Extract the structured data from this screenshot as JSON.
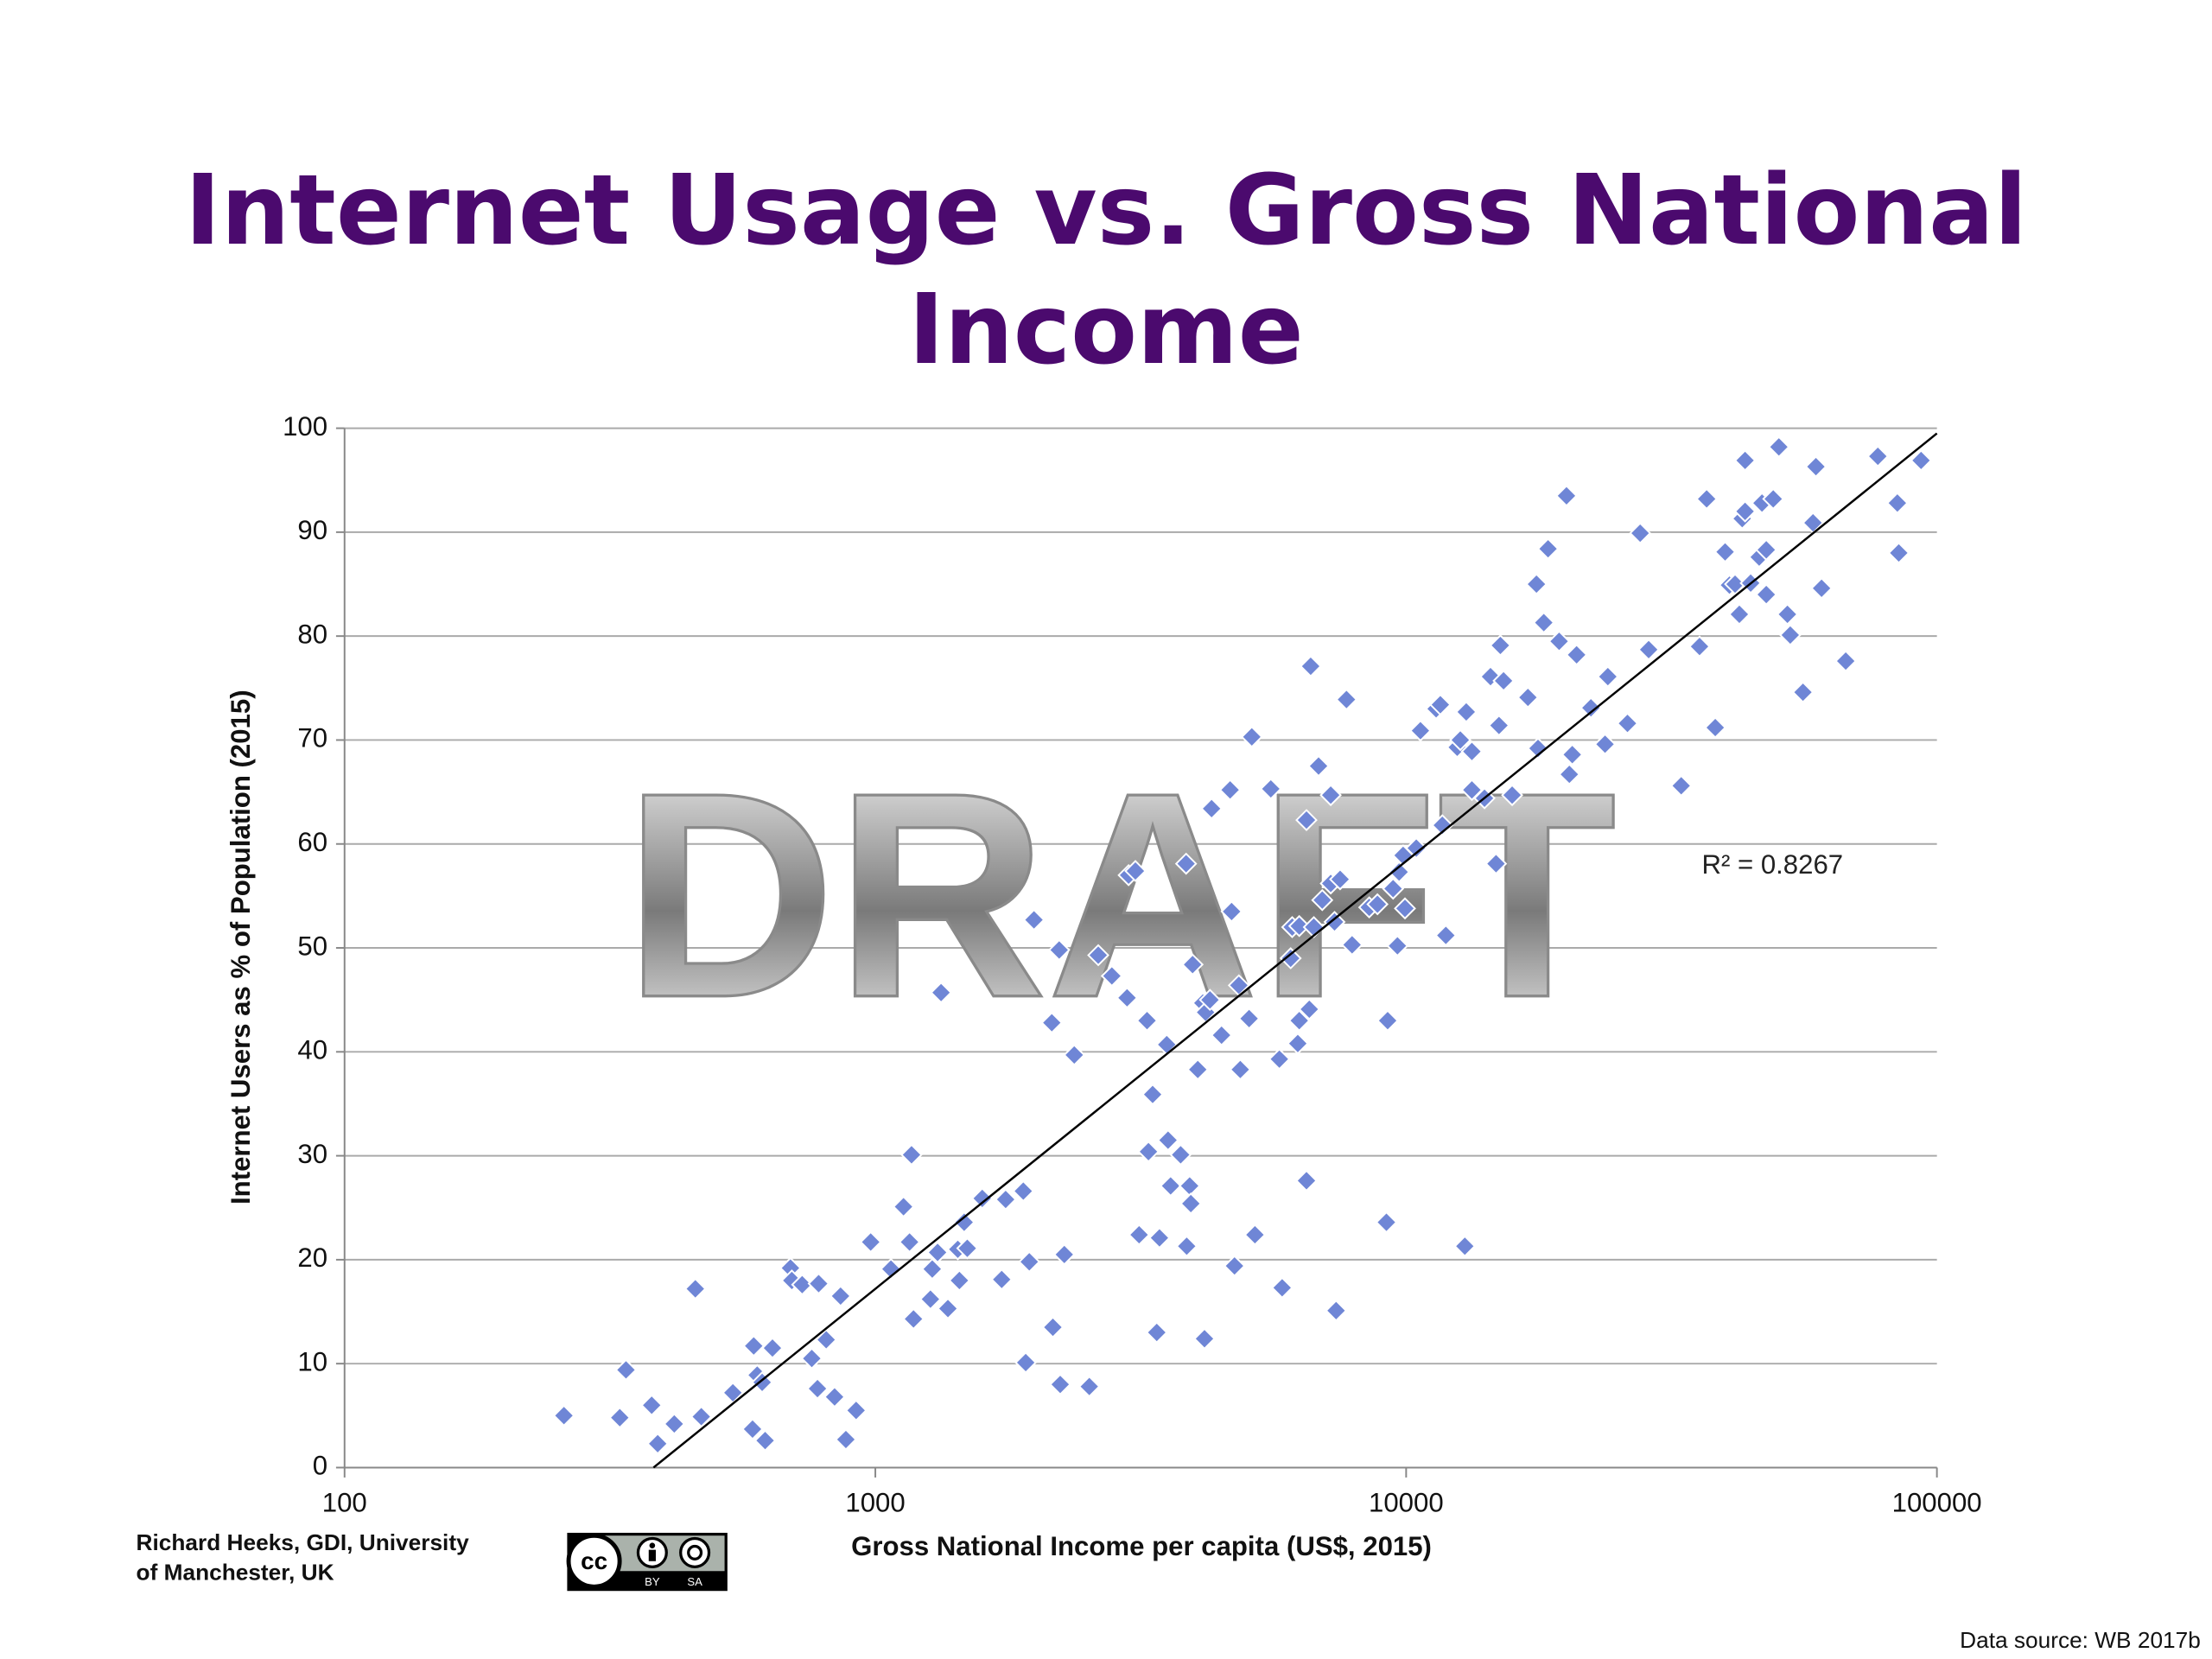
{
  "chart_data": {
    "type": "scatter",
    "title": "Internet Usage vs. Gross National Income",
    "x_label": "Gross National Income per capita (US$, 2015)",
    "y_label": "Internet Users as % of Population (2015)",
    "x_log": true,
    "grid": true,
    "color": "#6f86d6",
    "xlim": [
      100,
      100000
    ],
    "xticks": [
      100,
      1000,
      10000,
      100000
    ],
    "ylim": [
      0,
      100
    ],
    "yticks": [
      0,
      10,
      20,
      30,
      40,
      50,
      60,
      70,
      80,
      90,
      100
    ],
    "x": [
      259,
      330,
      339,
      379,
      389,
      418,
      458,
      470,
      539,
      590,
      587,
      599,
      620,
      640,
      612,
      692,
      696,
      728,
      759,
      782,
      778,
      808,
      838,
      860,
      880,
      920,
      980,
      1070,
      1130,
      1160,
      1170,
      1180,
      1270,
      1280,
      1310,
      1330,
      1370,
      1430,
      1440,
      1490,
      1470,
      1590,
      1730,
      1760,
      1900,
      1920,
      1950,
      1990,
      2150,
      2160,
      2220,
      2230,
      2270,
      2370,
      2530,
      2630,
      2790,
      2980,
      3000,
      3090,
      3140,
      3250,
      3270,
      3330,
      3390,
      3430,
      3540,
      3560,
      3600,
      3760,
      3850,
      3860,
      3910,
      3930,
      3960,
      4050,
      4140,
      4170,
      4190,
      4270,
      4300,
      4490,
      4660,
      4690,
      4750,
      4870,
      4840,
      5060,
      5120,
      5190,
      5560,
      5770,
      5840,
      6060,
      6100,
      6250,
      6290,
      6290,
      6490,
      6490,
      6570,
      6610,
      6700,
      6840,
      6950,
      7210,
      7210,
      7330,
      7380,
      7510,
      7720,
      7910,
      8520,
      8830,
      9230,
      9180,
      9450,
      9700,
      9630,
      9870,
      9950,
      10450,
      10640,
      11390,
      11600,
      11880,
      11700,
      12480,
      12650,
      12980,
      12900,
      13300,
      13300,
      14050,
      14420,
      14770,
      14960,
      15050,
      15260,
      15840,
      16960,
      17600,
      17720,
      18170,
      18510,
      19420,
      20050,
      20300,
      20560,
      20950,
      22290,
      23700,
      23990,
      26120,
      27600,
      28640,
      32980,
      35710,
      36830,
      38230,
      39900,
      40660,
      41660,
      42440,
      42970,
      43510,
      43510,
      44580,
      46250,
      46820,
      47700,
      47700,
      49160,
      50380,
      52280,
      52930,
      55930,
      58420,
      59160,
      60630,
      67330,
      77390,
      84230,
      84750,
      93360
    ],
    "y": [
      5.0,
      4.8,
      9.4,
      6.0,
      2.3,
      4.2,
      17.2,
      4.9,
      7.2,
      11.7,
      3.7,
      8.9,
      2.6,
      11.5,
      8.2,
      19.2,
      18.0,
      17.6,
      10.5,
      17.7,
      7.6,
      12.3,
      6.8,
      16.5,
      2.7,
      5.5,
      21.7,
      19.1,
      25.1,
      21.7,
      30.1,
      14.3,
      16.2,
      19.1,
      20.7,
      45.7,
      15.3,
      21.0,
      18.0,
      21.1,
      23.6,
      25.9,
      18.1,
      25.8,
      26.6,
      10.1,
      19.8,
      52.7,
      42.8,
      13.5,
      49.8,
      8.0,
      20.5,
      39.7,
      7.8,
      49.3,
      47.3,
      45.2,
      57.0,
      57.4,
      22.4,
      43.0,
      30.4,
      35.9,
      13.0,
      22.1,
      40.7,
      31.5,
      27.1,
      30.1,
      58.1,
      21.3,
      27.1,
      25.4,
      48.4,
      38.3,
      44.7,
      12.4,
      43.8,
      45.0,
      63.4,
      41.6,
      65.2,
      53.5,
      19.4,
      38.3,
      46.4,
      43.2,
      70.3,
      22.4,
      65.3,
      39.3,
      17.3,
      49.0,
      52.0,
      40.8,
      52.1,
      43.0,
      62.3,
      27.6,
      44.1,
      77.1,
      52.0,
      67.5,
      54.6,
      56.2,
      64.7,
      52.5,
      15.1,
      56.6,
      73.9,
      50.3,
      53.9,
      54.2,
      43.0,
      23.6,
      55.7,
      57.3,
      50.2,
      58.9,
      53.8,
      59.6,
      70.9,
      73.0,
      73.4,
      51.2,
      61.8,
      69.3,
      70.0,
      72.7,
      21.3,
      68.9,
      65.2,
      64.4,
      76.1,
      58.1,
      71.4,
      79.1,
      75.7,
      64.7,
      74.1,
      85.0,
      69.2,
      81.3,
      88.4,
      79.5,
      93.5,
      66.7,
      68.6,
      78.2,
      73.1,
      69.6,
      76.1,
      71.6,
      89.9,
      78.7,
      65.6,
      79.0,
      93.2,
      71.2,
      88.1,
      84.9,
      85.0,
      82.1,
      91.3,
      96.9,
      92.0,
      85.1,
      87.6,
      92.8,
      84.0,
      88.3,
      93.2,
      98.2,
      82.1,
      80.1,
      74.6,
      90.9,
      96.3,
      84.6,
      77.6,
      97.3,
      92.8,
      88.0,
      96.9
    ],
    "trendline": {
      "x": [
        382,
        100000
      ],
      "y": [
        0,
        99.5
      ],
      "color": "#000000"
    },
    "annotation": "R² = 0.8267",
    "watermark": "DRAFT"
  },
  "footer": {
    "author": [
      "Richard Heeks, GDI, University",
      "of Manchester, UK"
    ],
    "license": {
      "badge": "cc",
      "terms": [
        "BY",
        "SA"
      ]
    },
    "source": "Data source: WB 2017b"
  }
}
